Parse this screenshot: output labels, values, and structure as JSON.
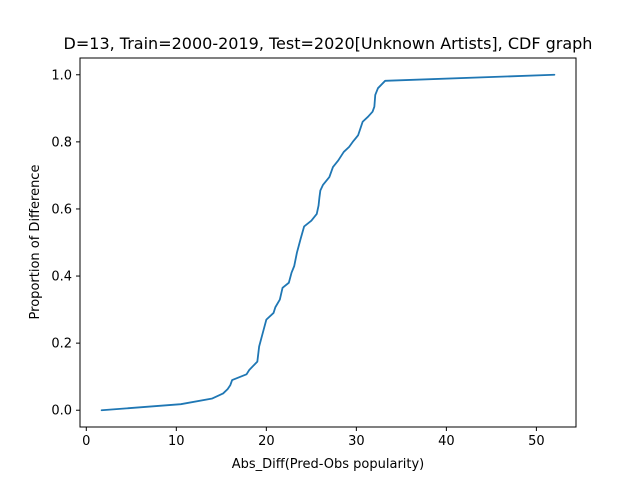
{
  "chart_data": {
    "type": "line",
    "title": "D=13, Train=2000-2019, Test=2020[Unknown Artists], CDF graph",
    "xlabel": "Abs_Diff(Pred-Obs popularity)",
    "ylabel": "Proportion of Difference",
    "xlim": [
      -0.7,
      54.4
    ],
    "ylim": [
      -0.05,
      1.05
    ],
    "xticks": [
      0,
      10,
      20,
      30,
      40,
      50
    ],
    "yticks": [
      0.0,
      0.2,
      0.4,
      0.6,
      0.8,
      1.0
    ],
    "xtick_labels": [
      "0",
      "10",
      "20",
      "30",
      "40",
      "50"
    ],
    "ytick_labels": [
      "0.0",
      "0.2",
      "0.4",
      "0.6",
      "0.8",
      "1.0"
    ],
    "grid": false,
    "series": [
      {
        "color": "#1f77b4",
        "x": [
          1.7,
          10.5,
          14.0,
          15.2,
          15.7,
          16.0,
          16.2,
          17.8,
          18.1,
          19.0,
          19.2,
          19.6,
          20.0,
          20.8,
          21.0,
          21.5,
          21.8,
          22.5,
          22.8,
          23.1,
          23.4,
          23.6,
          23.8,
          24.2,
          25.0,
          25.6,
          25.8,
          25.9,
          26.0,
          26.3,
          27.0,
          27.4,
          28.0,
          28.6,
          29.2,
          29.6,
          29.9,
          30.2,
          30.7,
          31.3,
          31.8,
          32.0,
          32.1,
          32.4,
          33.2,
          52.0
        ],
        "y": [
          0.0,
          0.018,
          0.035,
          0.05,
          0.063,
          0.075,
          0.09,
          0.107,
          0.12,
          0.145,
          0.19,
          0.23,
          0.27,
          0.29,
          0.307,
          0.33,
          0.365,
          0.38,
          0.41,
          0.43,
          0.47,
          0.49,
          0.51,
          0.548,
          0.565,
          0.585,
          0.61,
          0.635,
          0.655,
          0.672,
          0.695,
          0.725,
          0.745,
          0.77,
          0.785,
          0.8,
          0.81,
          0.82,
          0.86,
          0.875,
          0.89,
          0.905,
          0.94,
          0.96,
          0.982,
          1.0
        ]
      }
    ]
  }
}
